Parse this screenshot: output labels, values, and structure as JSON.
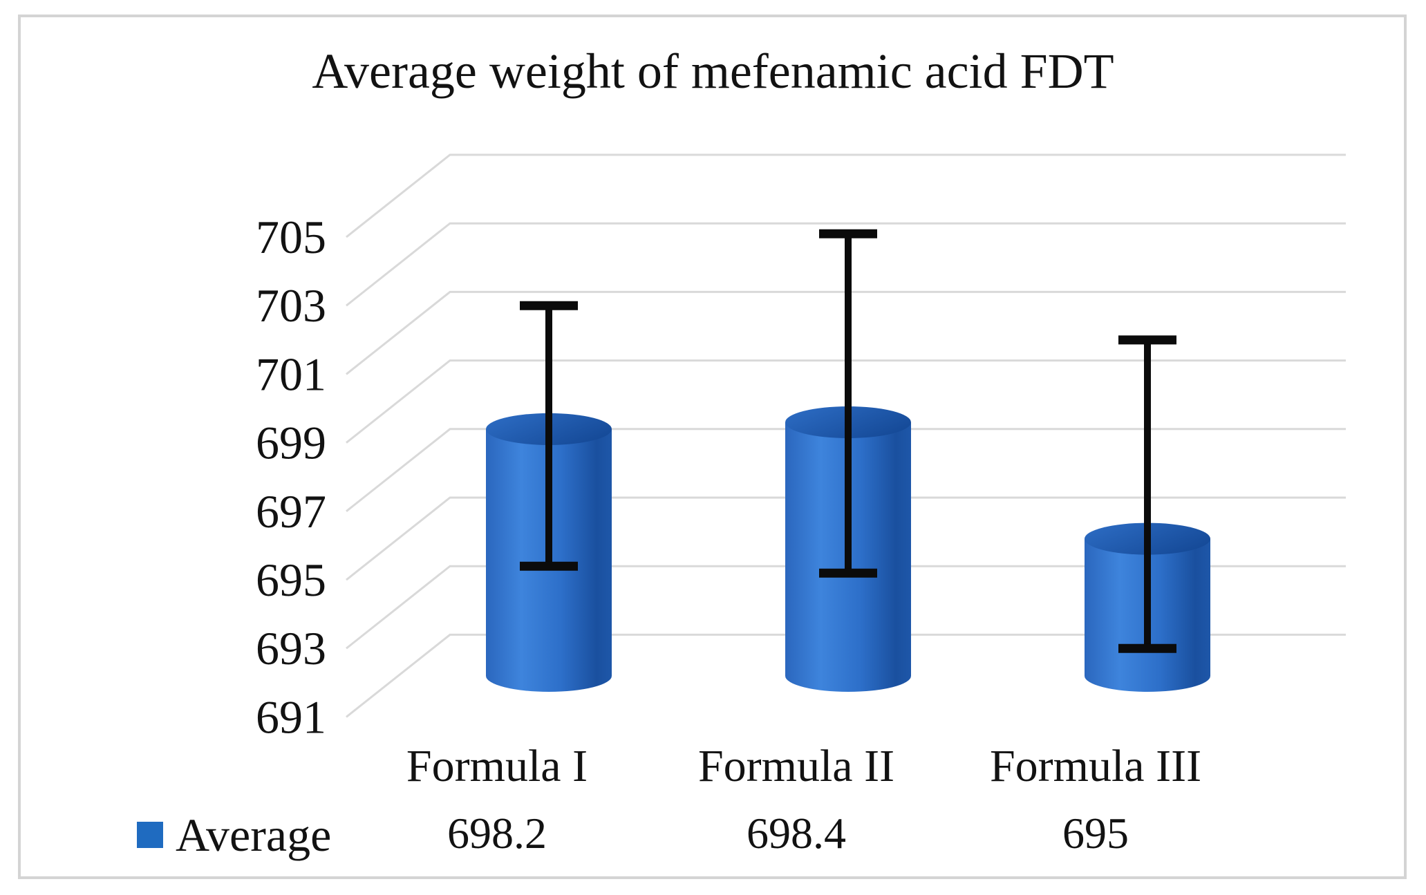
{
  "chart_data": {
    "type": "bar",
    "subtype": "3d-cylinder-column-with-error-bars",
    "title": "Average weight of mefenamic acid FDT",
    "categories": [
      "Formula I",
      "Formula II",
      "Formula III"
    ],
    "series": [
      {
        "name": "Average",
        "values": [
          698.2,
          698.4,
          695
        ]
      }
    ],
    "value_labels": [
      "698.2",
      "698.4",
      "695"
    ],
    "error_bars": [
      {
        "upper": 701.8,
        "lower": 694.2
      },
      {
        "upper": 703.9,
        "lower": 694.0
      },
      {
        "upper": 700.8,
        "lower": 691.8
      }
    ],
    "xlabel": "",
    "ylabel": "",
    "y_axis": {
      "min": 691,
      "max": 705,
      "step": 2,
      "ticks": [
        705,
        703,
        701,
        699,
        697,
        695,
        693,
        691
      ]
    },
    "grid": true,
    "legend": {
      "label": "Average",
      "position": "bottom-left",
      "swatch_color": "#1f6bc0"
    },
    "colors": {
      "bar_body_edge": "#2b67be",
      "bar_body_light": "#3e84dc",
      "bar_body_mid": "#2d6fc9",
      "bar_body_dark": "#1a509f",
      "bar_body_rim": "#1e57a9",
      "bar_top_light": "#2e6ec6",
      "bar_top_dark": "#164b99",
      "error_bar": "#0b0b0b",
      "gridline": "#d9d9d9",
      "text": "#121212",
      "frame_border": "#d4d4d4",
      "background": "#ffffff"
    }
  }
}
